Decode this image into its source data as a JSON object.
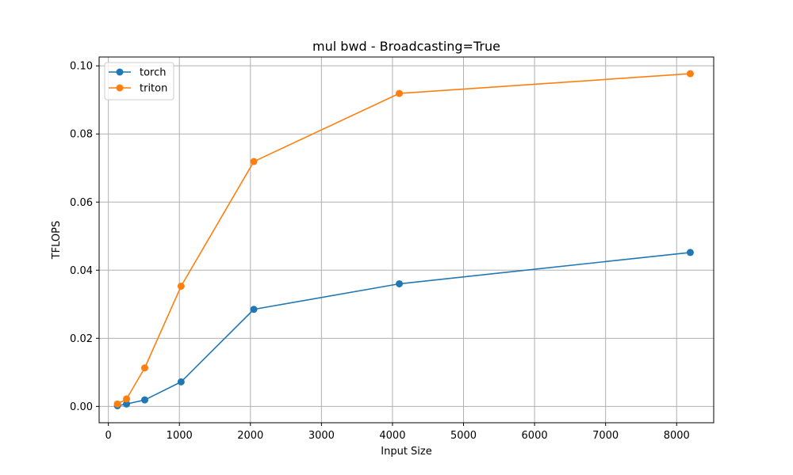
{
  "chart_data": {
    "type": "line",
    "title": "mul bwd - Broadcasting=True",
    "xlabel": "Input Size",
    "ylabel": "TFLOPS",
    "xlim": [
      -130,
      8522
    ],
    "ylim": [
      -0.0048,
      0.1026
    ],
    "xticks": [
      0,
      1000,
      2000,
      3000,
      4000,
      5000,
      6000,
      7000,
      8000
    ],
    "xtick_labels": [
      "0",
      "1000",
      "2000",
      "3000",
      "4000",
      "5000",
      "6000",
      "7000",
      "8000"
    ],
    "yticks": [
      0,
      0.02,
      0.04,
      0.06,
      0.08,
      0.1
    ],
    "ytick_labels": [
      "0.00",
      "0.02",
      "0.04",
      "0.06",
      "0.08",
      "0.10"
    ],
    "grid": true,
    "legend_position": "top-left",
    "x": [
      128,
      256,
      512,
      1024,
      2048,
      4096,
      8192
    ],
    "series": [
      {
        "name": "torch",
        "color": "#1f77b4",
        "values": [
          0.0002,
          0.0007,
          0.0019,
          0.0072,
          0.0285,
          0.036,
          0.0452
        ]
      },
      {
        "name": "triton",
        "color": "#ff7f0e",
        "values": [
          0.0007,
          0.0022,
          0.0113,
          0.0353,
          0.0719,
          0.0919,
          0.0977
        ]
      }
    ]
  }
}
